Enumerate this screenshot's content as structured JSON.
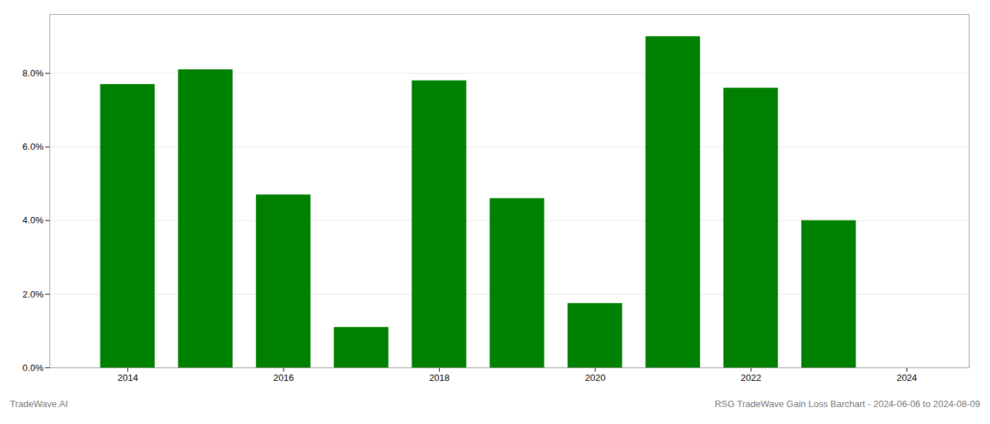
{
  "chart_data": {
    "type": "bar",
    "x": [
      2014,
      2015,
      2016,
      2017,
      2018,
      2019,
      2020,
      2021,
      2022,
      2023,
      2024
    ],
    "values": [
      0.077,
      0.081,
      0.047,
      0.011,
      0.078,
      0.046,
      0.0175,
      0.09,
      0.076,
      0.04,
      null
    ],
    "color": "#008000",
    "xlim": [
      2013.0,
      2024.8
    ],
    "xticks": [
      2014,
      2016,
      2018,
      2020,
      2022,
      2024
    ],
    "ylim": [
      0,
      0.096
    ],
    "yticks": [
      {
        "value": 0.0,
        "label": "0.0%"
      },
      {
        "value": 0.02,
        "label": "2.0%"
      },
      {
        "value": 0.04,
        "label": "4.0%"
      },
      {
        "value": 0.06,
        "label": "6.0%"
      },
      {
        "value": 0.08,
        "label": "8.0%"
      }
    ],
    "grid": true,
    "annotations": [
      "TradeWave.AI",
      "RSG TradeWave Gain Loss Barchart - 2024-06-06 to 2024-08-09"
    ]
  }
}
